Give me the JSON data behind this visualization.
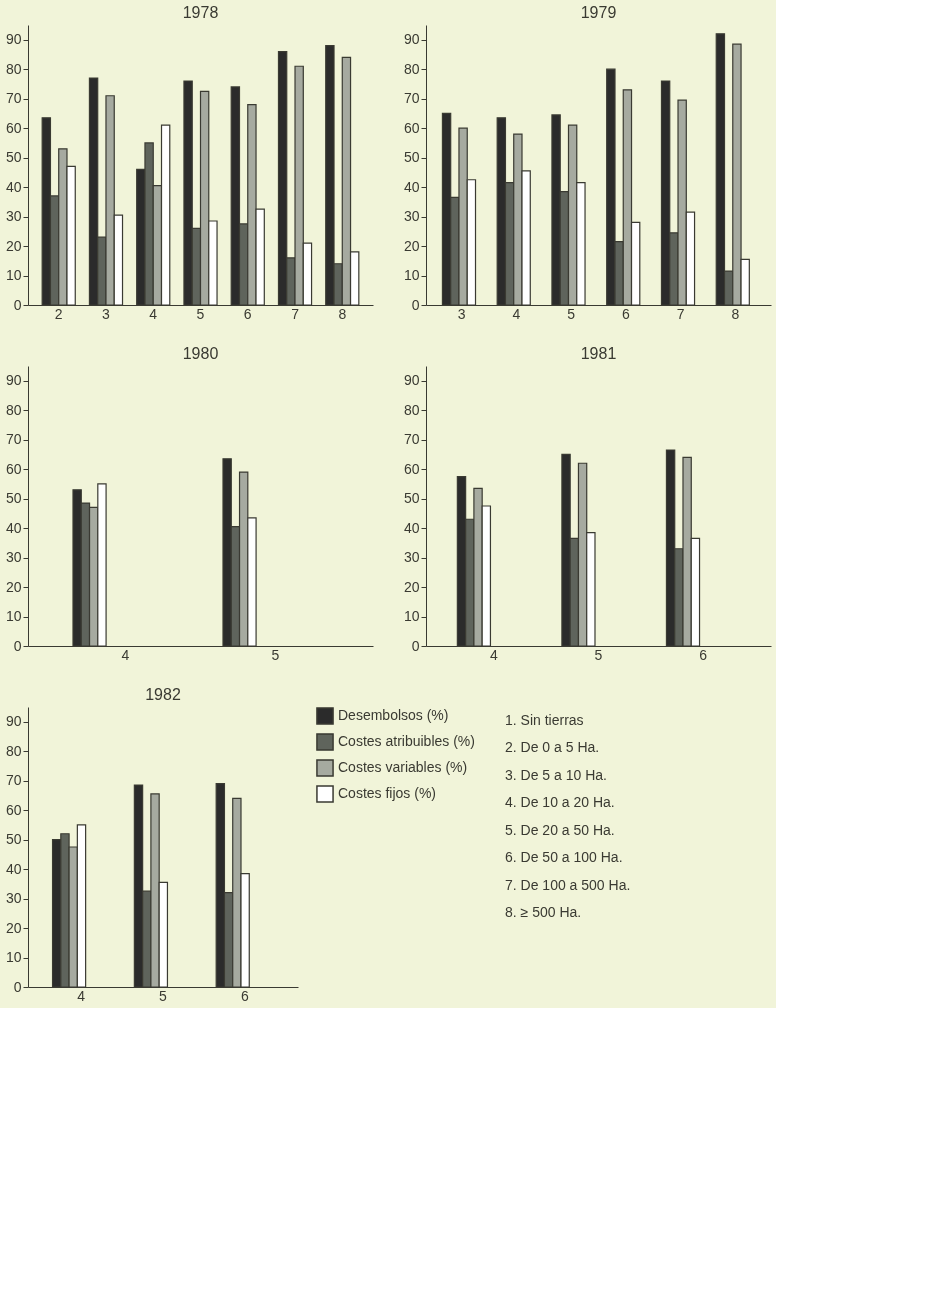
{
  "chart_data": [
    {
      "type": "bar",
      "title": "1978",
      "categories": [
        "2",
        "3",
        "4",
        "5",
        "6",
        "7",
        "8"
      ],
      "ylim": [
        0,
        95
      ],
      "yticks": [
        0,
        10,
        20,
        30,
        40,
        50,
        60,
        70,
        80,
        90
      ],
      "grid": false,
      "series": [
        {
          "color": "#2b2b2b",
          "values": [
            63.5,
            77,
            46,
            76,
            74,
            86,
            88
          ]
        },
        {
          "color": "#5f645c",
          "values": [
            37,
            23,
            55,
            26,
            27.5,
            16,
            14
          ]
        },
        {
          "color": "#a6aaa0",
          "values": [
            53,
            71,
            40.5,
            72.5,
            68,
            81,
            84
          ]
        },
        {
          "color": "#ffffff",
          "values": [
            47,
            30.5,
            61,
            28.5,
            32.5,
            21,
            18
          ]
        }
      ]
    },
    {
      "type": "bar",
      "title": "1979",
      "categories": [
        "3",
        "4",
        "5",
        "6",
        "7",
        "8"
      ],
      "ylim": [
        0,
        95
      ],
      "yticks": [
        0,
        10,
        20,
        30,
        40,
        50,
        60,
        70,
        80,
        90
      ],
      "grid": false,
      "series": [
        {
          "color": "#2b2b2b",
          "values": [
            65,
            63.5,
            64.5,
            80,
            76,
            92
          ]
        },
        {
          "color": "#5f645c",
          "values": [
            36.5,
            41.5,
            38.5,
            21.5,
            24.5,
            11.5
          ]
        },
        {
          "color": "#a6aaa0",
          "values": [
            60,
            58,
            61,
            73,
            69.5,
            88.5
          ]
        },
        {
          "color": "#ffffff",
          "values": [
            42.5,
            45.5,
            41.5,
            28,
            31.5,
            15.5
          ]
        }
      ]
    },
    {
      "type": "bar",
      "title": "1980",
      "categories": [
        "4",
        "5"
      ],
      "ylim": [
        0,
        95
      ],
      "yticks": [
        0,
        10,
        20,
        30,
        40,
        50,
        60,
        70,
        80,
        90
      ],
      "grid": false,
      "series": [
        {
          "color": "#2b2b2b",
          "values": [
            53,
            63.5
          ]
        },
        {
          "color": "#5f645c",
          "values": [
            48.5,
            40.5
          ]
        },
        {
          "color": "#a6aaa0",
          "values": [
            47,
            59
          ]
        },
        {
          "color": "#ffffff",
          "values": [
            55,
            43.5
          ]
        }
      ]
    },
    {
      "type": "bar",
      "title": "1981",
      "categories": [
        "4",
        "5",
        "6"
      ],
      "ylim": [
        0,
        95
      ],
      "yticks": [
        0,
        10,
        20,
        30,
        40,
        50,
        60,
        70,
        80,
        90
      ],
      "grid": false,
      "series": [
        {
          "color": "#2b2b2b",
          "values": [
            57.5,
            65,
            66.5
          ]
        },
        {
          "color": "#5f645c",
          "values": [
            43,
            36.5,
            33
          ]
        },
        {
          "color": "#a6aaa0",
          "values": [
            53.5,
            62,
            64
          ]
        },
        {
          "color": "#ffffff",
          "values": [
            47.5,
            38.5,
            36.5
          ]
        }
      ]
    },
    {
      "type": "bar",
      "title": "1982",
      "categories": [
        "4",
        "5",
        "6"
      ],
      "ylim": [
        0,
        95
      ],
      "yticks": [
        0,
        10,
        20,
        30,
        40,
        50,
        60,
        70,
        80,
        90
      ],
      "grid": false,
      "legend": "right",
      "series": [
        {
          "name": "Desembolsos (%)",
          "color": "#2b2b2b",
          "values": [
            50,
            68.5,
            69
          ]
        },
        {
          "name": "Costes atribuibles (%)",
          "color": "#5f645c",
          "values": [
            52,
            32.5,
            32
          ]
        },
        {
          "name": "Costes variables (%)",
          "color": "#a6aaa0",
          "values": [
            47.5,
            65.5,
            64
          ]
        },
        {
          "name": "Costes fijos (%)",
          "color": "#ffffff",
          "values": [
            55,
            35.5,
            38.5
          ]
        }
      ]
    },
    {
      "type": "other",
      "annotations": [
        "1.  Sin tierras",
        "2.  De 0 a 5 Ha.",
        "3.  De 5 a 10 Ha.",
        "4.  De 10 a 20 Ha.",
        "5.  De 20 a 50 Ha.",
        "6.  De 50 a 100 Ha.",
        "7.  De 100 a 500 Ha.",
        "8.  ≥ 500 Ha."
      ]
    }
  ]
}
